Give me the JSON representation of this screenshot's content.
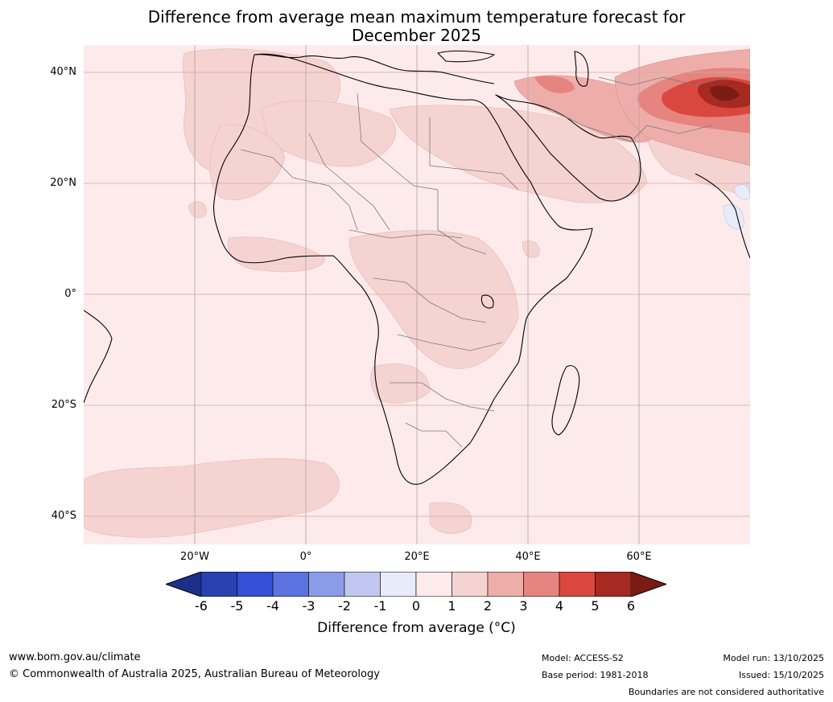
{
  "title": {
    "line1": "Difference from average mean maximum temperature forecast for",
    "line2": "December 2025"
  },
  "axes": {
    "lat_labels": [
      "40°N",
      "20°N",
      "0°",
      "20°S",
      "40°S"
    ],
    "lon_labels": [
      "20°W",
      "0°",
      "20°E",
      "40°E",
      "60°E"
    ]
  },
  "colorbar": {
    "ticks": [
      "-6",
      "-5",
      "-4",
      "-3",
      "-2",
      "-1",
      "0",
      "1",
      "2",
      "3",
      "4",
      "5",
      "6"
    ],
    "colors": [
      "#1c2f8a",
      "#2a41b2",
      "#3450d6",
      "#5a73e0",
      "#8a9ce8",
      "#c0c8f2",
      "#e8ebfa",
      "#fcebea",
      "#f5d3d1",
      "#edaeaa",
      "#e6847f",
      "#d9473f",
      "#a62a22",
      "#7a1c14"
    ],
    "label": "Difference from average (°C)"
  },
  "footer": {
    "website": "www.bom.gov.au/climate",
    "copyright": "© Commonwealth of Australia 2025, Australian Bureau of Meteorology",
    "model": "Model: ACCESS-S2",
    "base_period": "Base period: 1981-2018",
    "model_run": "Model run: 13/10/2025",
    "issued": "Issued: 15/10/2025",
    "disclaimer": "Boundaries are not considered authoritative"
  },
  "map_colors": {
    "ocean": "#fcebea",
    "warm1": "#f5d3d1",
    "warm2": "#edaeaa",
    "warm3": "#e6847f",
    "warm4": "#d9473f",
    "warm5": "#a62a22",
    "warm6": "#7a1c14",
    "cool1": "#e8ebfa",
    "coast": "#000000",
    "border": "#7a7a7a",
    "grid": "#d9a8a6"
  }
}
